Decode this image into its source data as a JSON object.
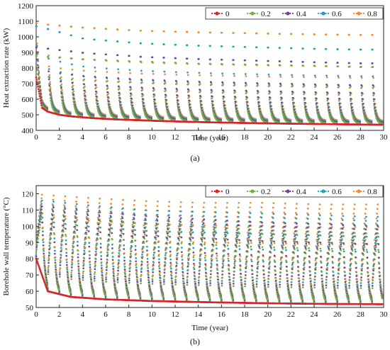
{
  "panels": [
    {
      "caption": "(a)",
      "legend": {
        "placement": "top-right",
        "labels": [
          "0",
          "0.2",
          "0.4",
          "0.6",
          "0.8"
        ]
      }
    },
    {
      "caption": "(b)",
      "legend": {
        "placement": "top-right",
        "labels": [
          "0",
          "0.2",
          "0.4",
          "0.6",
          "0.8"
        ]
      }
    }
  ],
  "chart_data": [
    {
      "type": "scatter",
      "title": "",
      "xlabel": "Time (year)",
      "ylabel": "Heat extraction rate (kW)",
      "xlim": [
        0,
        30
      ],
      "ylim": [
        400,
        1200
      ],
      "xticks": [
        0,
        2,
        4,
        6,
        8,
        10,
        12,
        14,
        16,
        18,
        20,
        22,
        24,
        26,
        28,
        30
      ],
      "yticks": [
        400,
        500,
        600,
        700,
        800,
        900,
        1000,
        1100,
        1200
      ],
      "grid": false,
      "series": [
        {
          "name": "0",
          "color": "#d6262b",
          "x": [
            0,
            0.5,
            1,
            2,
            3,
            5,
            7,
            10,
            13,
            16,
            20,
            25,
            30
          ],
          "y": [
            740,
            545,
            520,
            500,
            490,
            478,
            470,
            462,
            455,
            450,
            445,
            440,
            436
          ]
        },
        {
          "name": "0.2",
          "color": "#77ab43",
          "x": [
            1,
            5,
            10,
            15,
            20,
            25,
            29
          ],
          "y": [
            870,
            850,
            835,
            822,
            815,
            808,
            800
          ]
        },
        {
          "name": "0.4",
          "color": "#7d3f98",
          "x": [
            1,
            5,
            10,
            15,
            20,
            25,
            29
          ],
          "y": [
            920,
            885,
            860,
            845,
            835,
            825,
            818
          ]
        },
        {
          "name": "0.6",
          "color": "#1ba0c2",
          "x": [
            1,
            5,
            10,
            15,
            20,
            25,
            29
          ],
          "y": [
            1050,
            970,
            940,
            925,
            915,
            905,
            900
          ]
        },
        {
          "name": "0.8",
          "color": "#f28a2e",
          "x": [
            0,
            1,
            5,
            10,
            15,
            20,
            25,
            29
          ],
          "y": [
            1100,
            1060,
            1035,
            1015,
            1005,
            998,
            992,
            988
          ]
        }
      ]
    },
    {
      "type": "scatter",
      "title": "",
      "xlabel": "Time (year)",
      "ylabel": "Borehole wall temperature (°C)",
      "xlim": [
        0,
        30
      ],
      "ylim": [
        50,
        125
      ],
      "xticks": [
        0,
        2,
        4,
        6,
        8,
        10,
        12,
        14,
        16,
        18,
        20,
        22,
        24,
        26,
        28,
        30
      ],
      "yticks": [
        50,
        60,
        70,
        80,
        90,
        100,
        110,
        120
      ],
      "grid": false,
      "series": [
        {
          "name": "0",
          "color": "#d6262b",
          "x": [
            0,
            1,
            3,
            6,
            10,
            15,
            20,
            25,
            30
          ],
          "y": [
            80,
            60,
            56.5,
            55,
            54,
            53.2,
            52.6,
            52.2,
            52
          ]
        },
        {
          "name": "0.2",
          "color": "#77ab43",
          "x": [
            1,
            5,
            10,
            15,
            20,
            25,
            29
          ],
          "y": [
            107,
            104,
            101,
            99,
            97,
            96,
            95
          ]
        },
        {
          "name": "0.4",
          "color": "#7d3f98",
          "x": [
            1,
            5,
            10,
            15,
            20,
            25,
            29
          ],
          "y": [
            111,
            108,
            105,
            103,
            101,
            100,
            99
          ]
        },
        {
          "name": "0.6",
          "color": "#1ba0c2",
          "x": [
            1,
            5,
            10,
            15,
            20,
            25,
            29
          ],
          "y": [
            114,
            111,
            108,
            107,
            106,
            105,
            104
          ]
        },
        {
          "name": "0.8",
          "color": "#f28a2e",
          "x": [
            1,
            5,
            10,
            15,
            20,
            25,
            29
          ],
          "y": [
            117,
            115,
            113,
            112,
            112,
            111,
            111
          ]
        }
      ]
    }
  ]
}
